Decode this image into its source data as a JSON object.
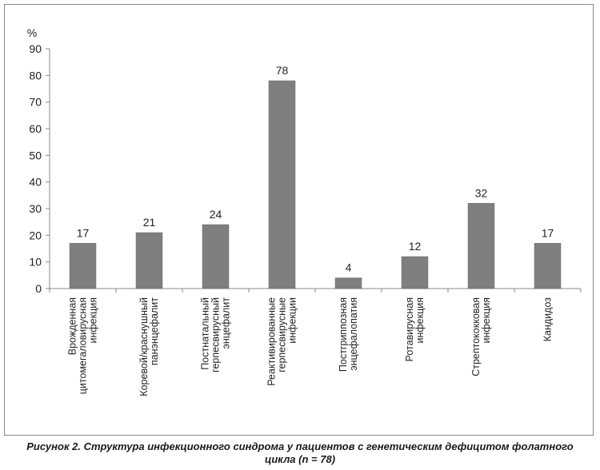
{
  "chart_data": {
    "type": "bar",
    "ylabel": "%",
    "ylim": [
      0,
      90
    ],
    "yticks": [
      0,
      10,
      20,
      30,
      40,
      50,
      60,
      70,
      80,
      90
    ],
    "categories": [
      [
        "Врожденная",
        "цитомегаловирусная",
        "инфекция"
      ],
      [
        "Коревой/краснушный",
        "панэнцефалит"
      ],
      [
        "Постнатальный",
        "герпесвирусный",
        "энцефалит"
      ],
      [
        "Реактивированные",
        "герпесвирусные",
        "инфекции"
      ],
      [
        "Постгриппозная",
        "энцефалопатия"
      ],
      [
        "Ротавирусная",
        "инфекция"
      ],
      [
        "Стрептококковая",
        "инфекция"
      ],
      [
        "Кандидоз"
      ]
    ],
    "values": [
      17,
      21,
      24,
      78,
      4,
      12,
      32,
      17
    ],
    "bar_color": "#7f7f7f",
    "grid": false
  },
  "caption": {
    "line1": "Рисунок 2. Структура инфекционного синдрома у пациентов с генетическим дефицитом фолатного",
    "line2": "цикла (n = 78)"
  }
}
